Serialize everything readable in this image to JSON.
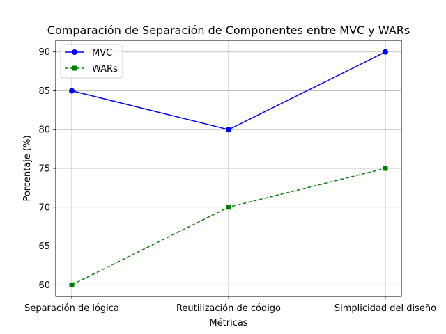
{
  "chart_data": {
    "type": "line",
    "title": "Comparación de Separación de Componentes entre MVC y WARs",
    "xlabel": "Métricas",
    "ylabel": "Porcentaje (%)",
    "categories": [
      "Separación de lógica",
      "Reutilización de código",
      "Simplicidad del diseño"
    ],
    "ylim": [
      58.5,
      91.5
    ],
    "yticks": [
      60,
      65,
      70,
      75,
      80,
      85,
      90
    ],
    "grid": true,
    "legend_position": "top-left",
    "series": [
      {
        "name": "MVC",
        "values": [
          85,
          80,
          90
        ],
        "color": "#0000ff",
        "line_style": "solid",
        "marker": "circle"
      },
      {
        "name": "WARs",
        "values": [
          60,
          70,
          75
        ],
        "color": "#008000",
        "line_style": "dashed",
        "marker": "square"
      }
    ]
  }
}
